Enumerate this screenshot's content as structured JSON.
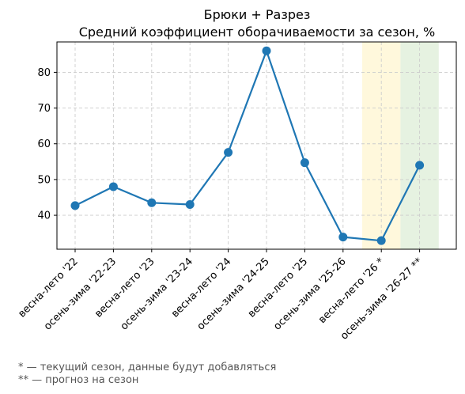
{
  "chart_data": {
    "type": "line",
    "title": "Брюки + Разрез",
    "subtitle": "Средний коэффициент оборачиваемости за сезон, %",
    "xlabel": "",
    "ylabel": "",
    "categories": [
      "весна-лето '22",
      "осень-зима '22-23",
      "весна-лето '23",
      "осень-зима '23-24",
      "весна-лето '24",
      "осень-зима '24-25",
      "весна-лето '25",
      "осень-зима '25-26",
      "весна-лето '26 *",
      "осень-зима '26-27 **"
    ],
    "values": [
      42.7,
      48.0,
      43.5,
      43.0,
      57.6,
      86.0,
      54.7,
      33.9,
      32.9,
      54.0
    ],
    "ylim": [
      30.5,
      88.5
    ],
    "yticks": [
      40,
      50,
      60,
      70,
      80
    ],
    "grid": true,
    "highlights": [
      {
        "category_index": 8,
        "color": "#fff8dc"
      },
      {
        "category_index": 9,
        "color": "#e6f2e1"
      }
    ],
    "line_color": "#1f77b4"
  },
  "footnotes": [
    "* — текущий сезон, данные будут добавляться",
    "** — прогноз на сезон"
  ]
}
